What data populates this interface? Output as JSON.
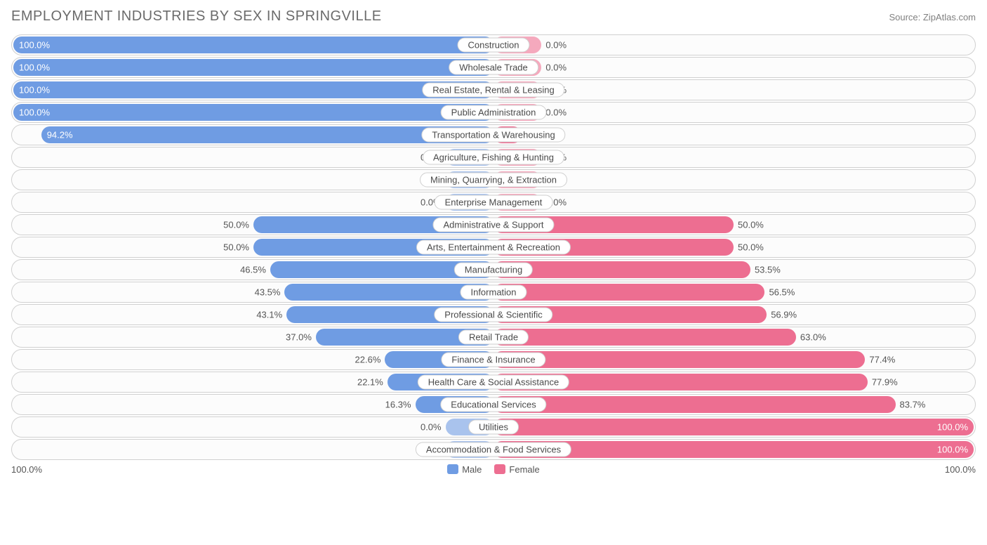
{
  "title": "EMPLOYMENT INDUSTRIES BY SEX IN SPRINGVILLE",
  "source": "Source: ZipAtlas.com",
  "chart": {
    "type": "diverging-bar",
    "male_color": "#6f9ce3",
    "female_color": "#ed6e91",
    "male_stub_color": "#a9c3ed",
    "female_stub_color": "#f5a9bd",
    "row_border_color": "#d0d0d0",
    "background_color": "#ffffff",
    "label_border_color": "#cfcfcf",
    "text_color": "#555555",
    "title_color": "#6b6b6b",
    "stub_width_pct": 10,
    "rows": [
      {
        "category": "Construction",
        "male": 100.0,
        "female": 0.0
      },
      {
        "category": "Wholesale Trade",
        "male": 100.0,
        "female": 0.0
      },
      {
        "category": "Real Estate, Rental & Leasing",
        "male": 100.0,
        "female": 0.0
      },
      {
        "category": "Public Administration",
        "male": 100.0,
        "female": 0.0
      },
      {
        "category": "Transportation & Warehousing",
        "male": 94.2,
        "female": 5.8
      },
      {
        "category": "Agriculture, Fishing & Hunting",
        "male": 0.0,
        "female": 0.0
      },
      {
        "category": "Mining, Quarrying, & Extraction",
        "male": 0.0,
        "female": 0.0
      },
      {
        "category": "Enterprise Management",
        "male": 0.0,
        "female": 0.0
      },
      {
        "category": "Administrative & Support",
        "male": 50.0,
        "female": 50.0
      },
      {
        "category": "Arts, Entertainment & Recreation",
        "male": 50.0,
        "female": 50.0
      },
      {
        "category": "Manufacturing",
        "male": 46.5,
        "female": 53.5
      },
      {
        "category": "Information",
        "male": 43.5,
        "female": 56.5
      },
      {
        "category": "Professional & Scientific",
        "male": 43.1,
        "female": 56.9
      },
      {
        "category": "Retail Trade",
        "male": 37.0,
        "female": 63.0
      },
      {
        "category": "Finance & Insurance",
        "male": 22.6,
        "female": 77.4
      },
      {
        "category": "Health Care & Social Assistance",
        "male": 22.1,
        "female": 77.9
      },
      {
        "category": "Educational Services",
        "male": 16.3,
        "female": 83.7
      },
      {
        "category": "Utilities",
        "male": 0.0,
        "female": 100.0
      },
      {
        "category": "Accommodation & Food Services",
        "male": 0.0,
        "female": 100.0
      }
    ]
  },
  "axis": {
    "left": "100.0%",
    "right": "100.0%"
  },
  "legend": {
    "male": "Male",
    "female": "Female"
  }
}
